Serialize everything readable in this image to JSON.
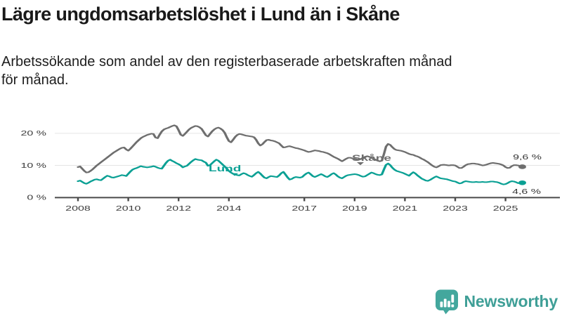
{
  "header": {
    "title": "Lägre ungdomsarbetslöshet i Lund än i Skåne",
    "subtitle_lines": [
      "Arbetssökande som andel av den registerbaserade arbetskraften månad",
      "för månad."
    ]
  },
  "chart_data": {
    "type": "line",
    "title": "Lägre ungdomsarbetslöshet i Lund än i Skåne",
    "unit": "% av registerbaserad arbetskraft",
    "x_start_year": 2008,
    "x_resolution": "monthly",
    "x_end": "2025-09",
    "x_ticks": [
      2008,
      2010,
      2012,
      2014,
      2017,
      2019,
      2021,
      2023,
      2025
    ],
    "y_ticks": [
      0,
      10,
      20
    ],
    "y_tick_suffix": " %",
    "ylim": [
      0,
      24
    ],
    "grid": "horizontal",
    "legend_position": "inline-labels",
    "series": [
      {
        "id": "skane",
        "name": "Skåne",
        "color": "#6e6e6e",
        "end_label": "9,6 %",
        "last_value": 9.6,
        "values": [
          9.5,
          9.7,
          9.0,
          8.3,
          7.8,
          7.9,
          8.3,
          8.8,
          9.4,
          10.0,
          10.5,
          11.0,
          11.5,
          12.0,
          12.5,
          13.0,
          13.5,
          14.0,
          14.4,
          14.8,
          15.2,
          15.5,
          15.6,
          15.0,
          14.6,
          15.2,
          15.9,
          16.6,
          17.3,
          17.9,
          18.5,
          18.9,
          19.2,
          19.5,
          19.7,
          19.9,
          19.8,
          18.7,
          18.5,
          19.6,
          20.6,
          21.2,
          21.5,
          21.7,
          22.0,
          22.3,
          22.5,
          22.2,
          21.0,
          19.6,
          19.2,
          19.8,
          20.5,
          21.2,
          21.7,
          22.0,
          22.3,
          22.2,
          21.9,
          21.4,
          20.4,
          19.4,
          19.0,
          19.8,
          20.6,
          21.2,
          21.6,
          21.8,
          21.5,
          21.0,
          20.2,
          18.8,
          17.6,
          17.2,
          18.0,
          18.9,
          19.5,
          19.8,
          19.7,
          19.5,
          19.3,
          19.2,
          19.1,
          19.0,
          18.8,
          18.0,
          16.9,
          16.2,
          16.6,
          17.3,
          17.9,
          18.0,
          17.8,
          17.7,
          17.5,
          17.2,
          16.9,
          16.2,
          15.6,
          15.7,
          15.9,
          16.0,
          15.8,
          15.6,
          15.4,
          15.3,
          15.1,
          14.9,
          14.7,
          14.4,
          14.2,
          14.3,
          14.5,
          14.7,
          14.6,
          14.5,
          14.3,
          14.2,
          14.0,
          13.8,
          13.5,
          13.1,
          12.7,
          12.4,
          12.1,
          11.7,
          11.3,
          11.7,
          12.1,
          12.4,
          12.4,
          12.2,
          12.1,
          11.9,
          11.8,
          12.0,
          12.4,
          12.7,
          12.9,
          12.7,
          12.4,
          12.1,
          11.8,
          11.5,
          11.3,
          11.5,
          13.6,
          15.9,
          16.7,
          16.4,
          15.7,
          15.1,
          14.8,
          14.7,
          14.6,
          14.4,
          14.2,
          13.9,
          13.6,
          13.4,
          13.3,
          13.0,
          12.8,
          12.5,
          12.1,
          11.8,
          11.4,
          11.0,
          10.5,
          10.0,
          9.6,
          9.4,
          9.7,
          10.1,
          10.2,
          10.2,
          10.1,
          10.0,
          10.1,
          10.1,
          10.0,
          9.6,
          9.2,
          9.2,
          9.6,
          10.1,
          10.4,
          10.5,
          10.6,
          10.6,
          10.5,
          10.4,
          10.2,
          10.0,
          10.1,
          10.3,
          10.5,
          10.7,
          10.8,
          10.7,
          10.6,
          10.5,
          10.3,
          10.0,
          9.5,
          9.2,
          9.3,
          9.8,
          10.1,
          10.1,
          10.0,
          9.8,
          9.6
        ]
      },
      {
        "id": "lund",
        "name": "Lund",
        "color": "#0aa094",
        "end_label": "4,6 %",
        "last_value": 4.6,
        "values": [
          5.1,
          5.3,
          4.9,
          4.5,
          4.3,
          4.6,
          5.0,
          5.3,
          5.6,
          5.7,
          5.5,
          5.4,
          5.9,
          6.4,
          6.8,
          6.6,
          6.3,
          6.2,
          6.4,
          6.6,
          6.8,
          7.0,
          6.9,
          6.7,
          7.4,
          8.1,
          8.7,
          9.0,
          9.2,
          9.5,
          9.8,
          9.6,
          9.5,
          9.4,
          9.5,
          9.6,
          9.8,
          9.6,
          9.3,
          9.1,
          9.0,
          9.9,
          10.8,
          11.5,
          11.8,
          11.4,
          11.1,
          10.7,
          10.4,
          10.0,
          9.4,
          9.7,
          9.9,
          10.5,
          11.1,
          11.6,
          12.0,
          11.8,
          11.7,
          11.6,
          11.2,
          10.9,
          9.9,
          10.1,
          10.7,
          11.3,
          11.8,
          11.5,
          10.9,
          10.3,
          9.7,
          9.0,
          8.3,
          7.8,
          7.4,
          7.2,
          7.0,
          6.9,
          7.3,
          7.6,
          7.4,
          7.0,
          6.7,
          6.5,
          7.0,
          7.6,
          8.0,
          7.5,
          6.8,
          6.2,
          6.0,
          6.4,
          6.7,
          6.6,
          6.5,
          6.4,
          6.9,
          7.6,
          8.0,
          7.2,
          6.3,
          5.6,
          5.8,
          6.2,
          6.4,
          6.3,
          6.2,
          6.4,
          7.0,
          7.5,
          7.8,
          7.3,
          6.7,
          6.4,
          6.7,
          7.0,
          7.3,
          7.0,
          6.6,
          6.4,
          6.8,
          7.3,
          7.6,
          7.2,
          6.6,
          6.2,
          6.0,
          6.4,
          6.8,
          7.0,
          7.1,
          7.2,
          7.3,
          7.2,
          7.0,
          6.7,
          6.5,
          6.6,
          7.0,
          7.4,
          7.8,
          7.6,
          7.3,
          7.1,
          7.0,
          7.2,
          8.8,
          10.2,
          10.6,
          10.1,
          9.3,
          8.7,
          8.3,
          8.1,
          7.9,
          7.7,
          7.4,
          7.1,
          6.8,
          7.4,
          7.9,
          7.5,
          6.9,
          6.4,
          5.9,
          5.6,
          5.3,
          5.2,
          5.5,
          5.9,
          6.3,
          6.6,
          6.3,
          6.0,
          5.9,
          5.8,
          5.7,
          5.5,
          5.3,
          5.1,
          5.0,
          4.7,
          4.4,
          4.5,
          4.9,
          5.1,
          5.0,
          4.9,
          4.8,
          4.8,
          4.9,
          4.8,
          4.8,
          4.9,
          4.8,
          4.8,
          4.9,
          5.0,
          5.0,
          4.9,
          4.8,
          4.6,
          4.3,
          4.1,
          4.2,
          4.5,
          4.9,
          5.1,
          5.0,
          4.8,
          4.5,
          4.4,
          4.6
        ]
      }
    ]
  },
  "footer": {
    "brand": "Newsworthy",
    "logo_icon": "bar-chart-exclamation-bubble-icon",
    "brand_color": "#3f9f97"
  }
}
